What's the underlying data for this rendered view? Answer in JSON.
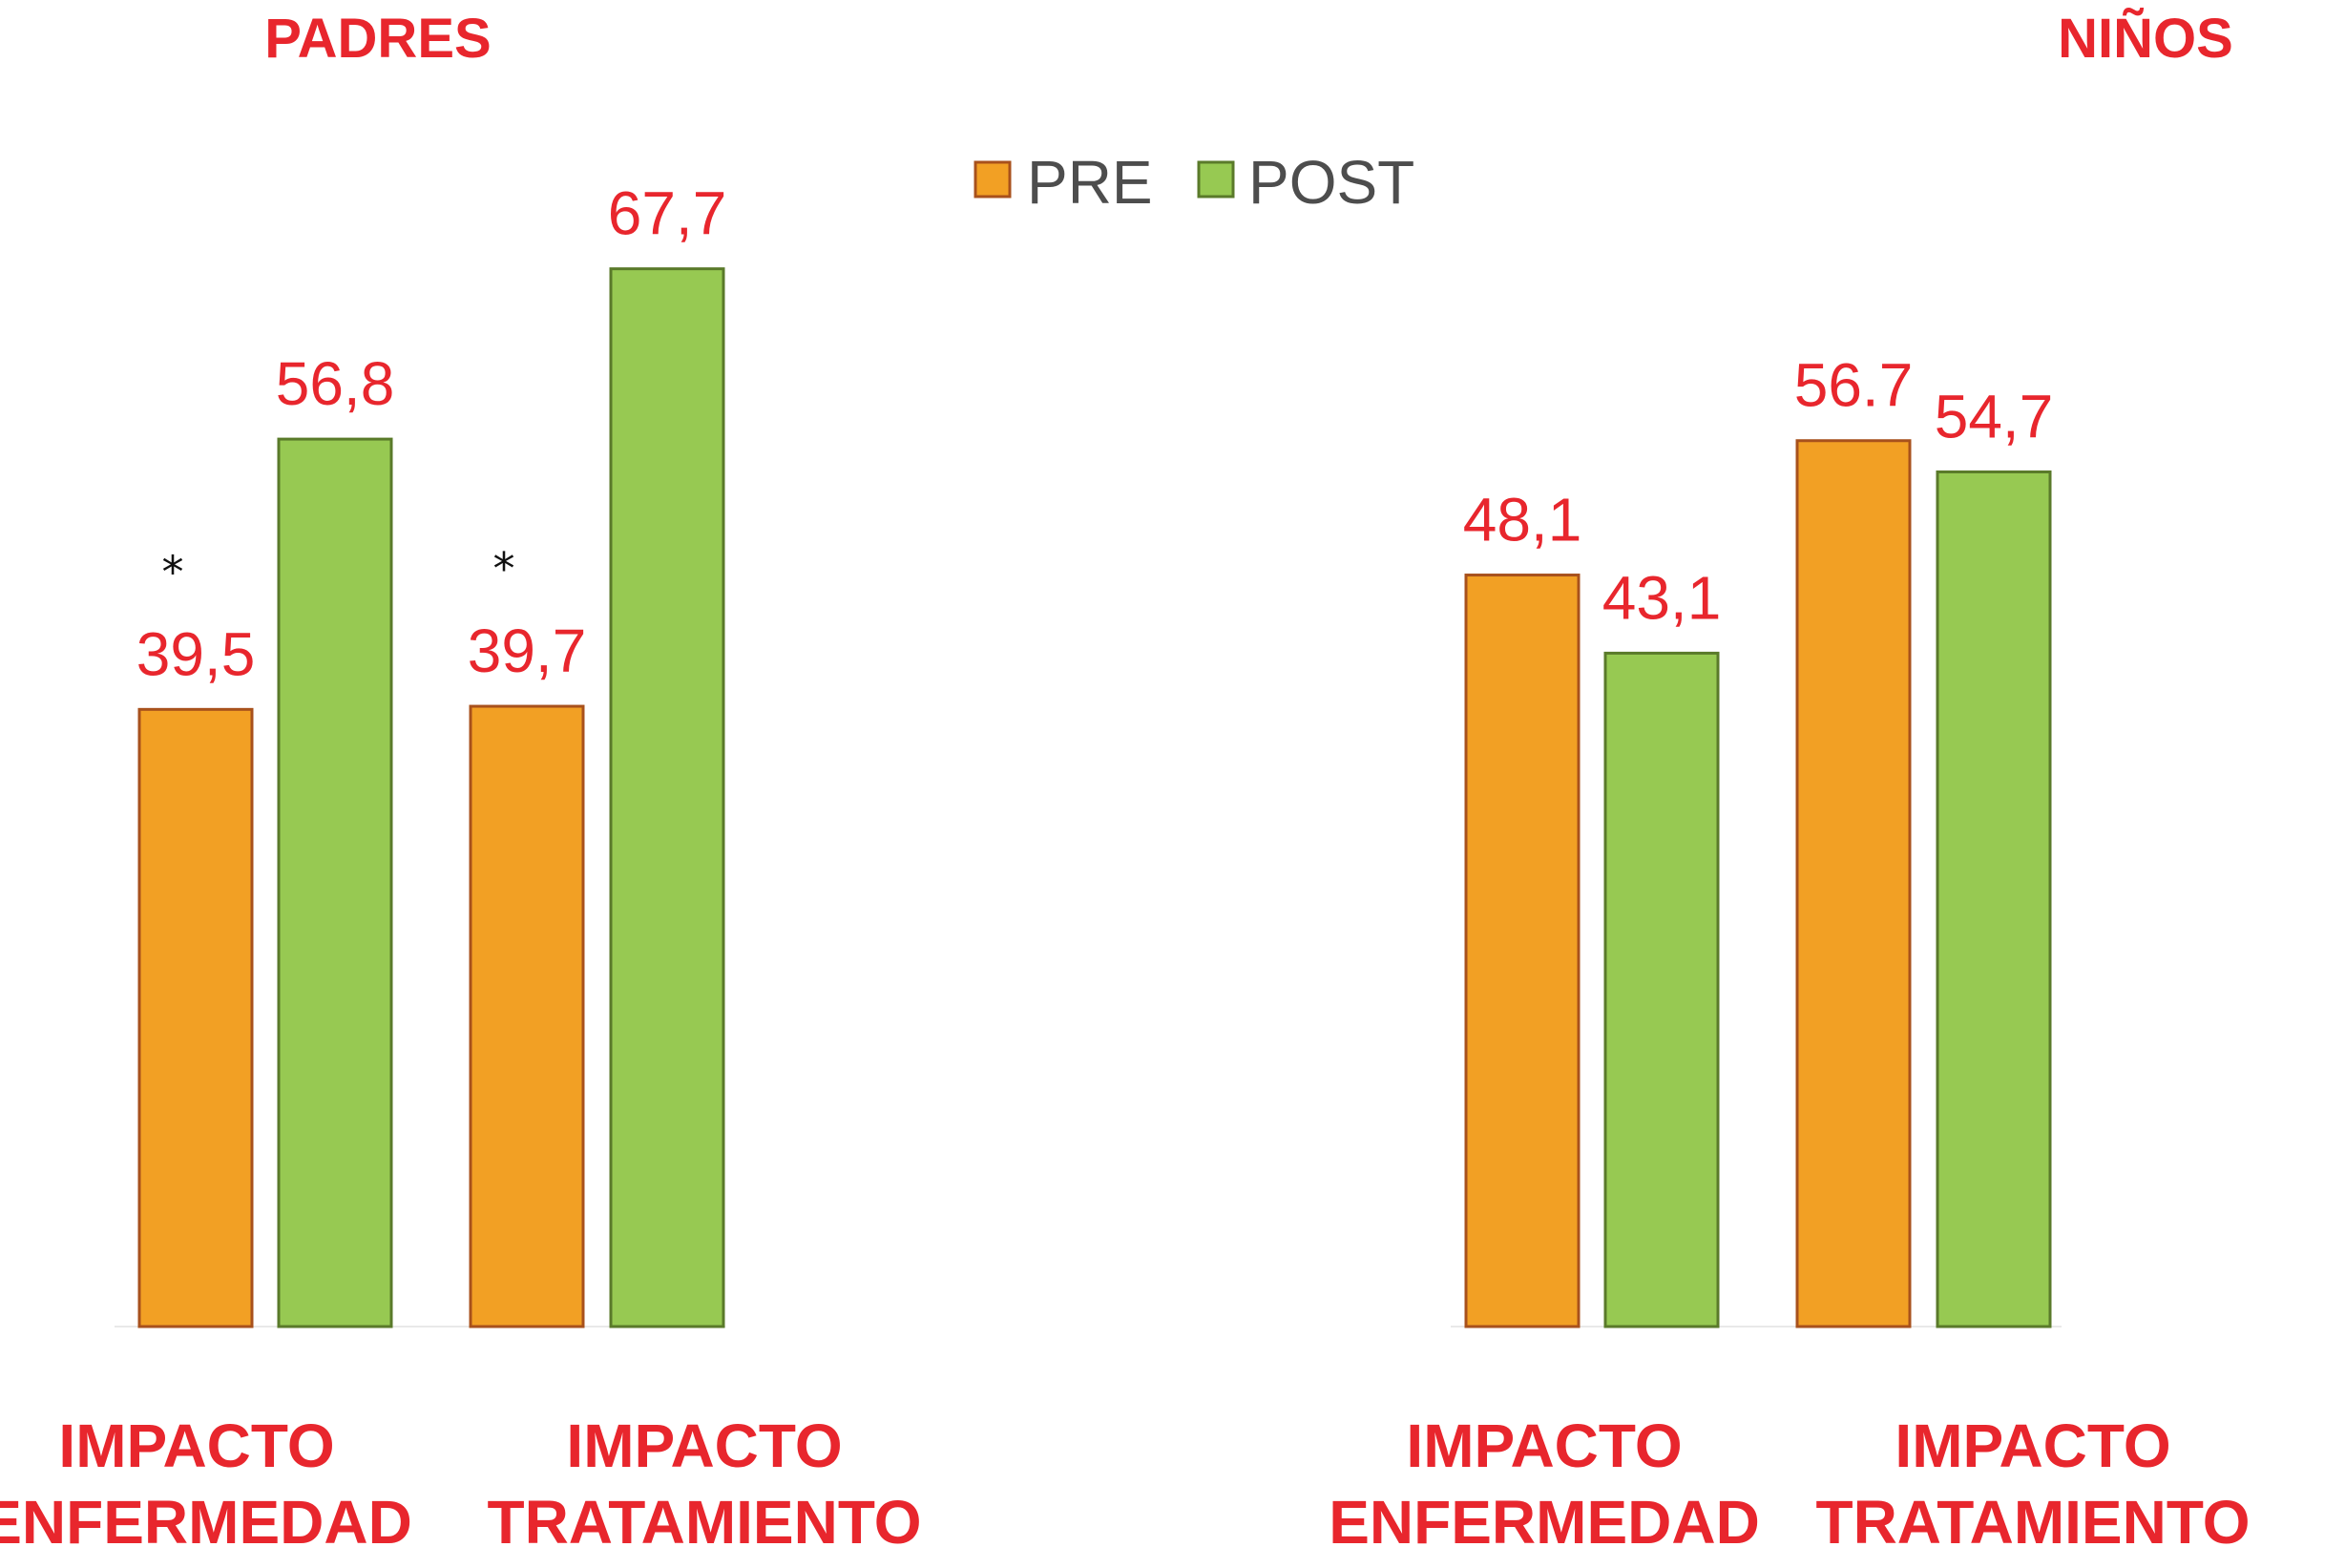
{
  "legend": [
    {
      "label": "PRE",
      "color": "#f2a024",
      "stroke": "#a8511c"
    },
    {
      "label": "POST",
      "color": "#97c952",
      "stroke": "#5a7a2a"
    }
  ],
  "chart_data": [
    {
      "type": "bar",
      "title": "PADRES",
      "categories": [
        "IMPACTO ENFERMEDAD",
        "IMPACTO TRATAMIENTO"
      ],
      "category_lines": [
        [
          "IMPACTO",
          "ENFERMEDAD"
        ],
        [
          "IMPACTO",
          "TRATAMIENTO"
        ]
      ],
      "series": [
        {
          "name": "PRE",
          "values": [
            39.5,
            39.7
          ],
          "labels": [
            "39,5",
            "39,7"
          ],
          "markers": [
            "*",
            "*"
          ]
        },
        {
          "name": "POST",
          "values": [
            56.8,
            67.7
          ],
          "labels": [
            "56,8",
            "67,7"
          ],
          "markers": [
            "",
            ""
          ]
        }
      ],
      "ylim": [
        0,
        70
      ],
      "grid": false,
      "legend_position": "top-center"
    },
    {
      "type": "bar",
      "title": "NIÑOS",
      "categories": [
        "IMPACTO ENFERMEDAD",
        "IMPACTO TRATAMIENTO"
      ],
      "category_lines": [
        [
          "IMPACTO",
          "ENFERMEDAD"
        ],
        [
          "IMPACTO",
          "TRATAMIENTO"
        ]
      ],
      "series": [
        {
          "name": "PRE",
          "values": [
            48.1,
            56.7
          ],
          "labels": [
            "48,1",
            "56.7"
          ],
          "markers": [
            "",
            ""
          ]
        },
        {
          "name": "POST",
          "values": [
            43.1,
            54.7
          ],
          "labels": [
            "43,1",
            "54,7"
          ],
          "markers": [
            "",
            ""
          ]
        }
      ],
      "ylim": [
        0,
        70
      ],
      "grid": false,
      "legend_position": "top-center"
    }
  ]
}
